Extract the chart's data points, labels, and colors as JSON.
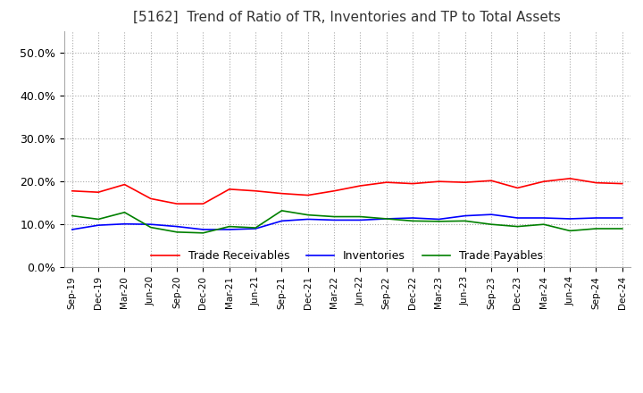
{
  "title": "[5162]  Trend of Ratio of TR, Inventories and TP to Total Assets",
  "title_fontsize": 11,
  "x_labels": [
    "Sep-19",
    "Dec-19",
    "Mar-20",
    "Jun-20",
    "Sep-20",
    "Dec-20",
    "Mar-21",
    "Jun-21",
    "Sep-21",
    "Dec-21",
    "Mar-22",
    "Jun-22",
    "Sep-22",
    "Dec-22",
    "Mar-23",
    "Jun-23",
    "Sep-23",
    "Dec-23",
    "Mar-24",
    "Jun-24",
    "Sep-24",
    "Dec-24"
  ],
  "trade_receivables": [
    0.178,
    0.175,
    0.193,
    0.16,
    0.148,
    0.148,
    0.182,
    0.178,
    0.172,
    0.168,
    0.178,
    0.19,
    0.198,
    0.195,
    0.2,
    0.198,
    0.202,
    0.185,
    0.2,
    0.207,
    0.197,
    0.195
  ],
  "inventories": [
    0.088,
    0.098,
    0.101,
    0.1,
    0.095,
    0.088,
    0.088,
    0.09,
    0.108,
    0.112,
    0.11,
    0.11,
    0.113,
    0.115,
    0.112,
    0.12,
    0.123,
    0.115,
    0.115,
    0.113,
    0.115,
    0.115
  ],
  "trade_payables": [
    0.12,
    0.112,
    0.128,
    0.093,
    0.082,
    0.08,
    0.095,
    0.092,
    0.132,
    0.122,
    0.118,
    0.118,
    0.113,
    0.108,
    0.107,
    0.108,
    0.1,
    0.095,
    0.1,
    0.085,
    0.09,
    0.09
  ],
  "tr_color": "#FF0000",
  "inv_color": "#0000FF",
  "tp_color": "#008000",
  "ylim": [
    0.0,
    0.55
  ],
  "yticks": [
    0.0,
    0.1,
    0.2,
    0.3,
    0.4,
    0.5
  ],
  "ytick_labels": [
    "0.0%",
    "10.0%",
    "20.0%",
    "30.0%",
    "40.0%",
    "50.0%"
  ],
  "legend_labels": [
    "Trade Receivables",
    "Inventories",
    "Trade Payables"
  ],
  "background_color": "#FFFFFF",
  "grid_color": "#AAAAAA"
}
